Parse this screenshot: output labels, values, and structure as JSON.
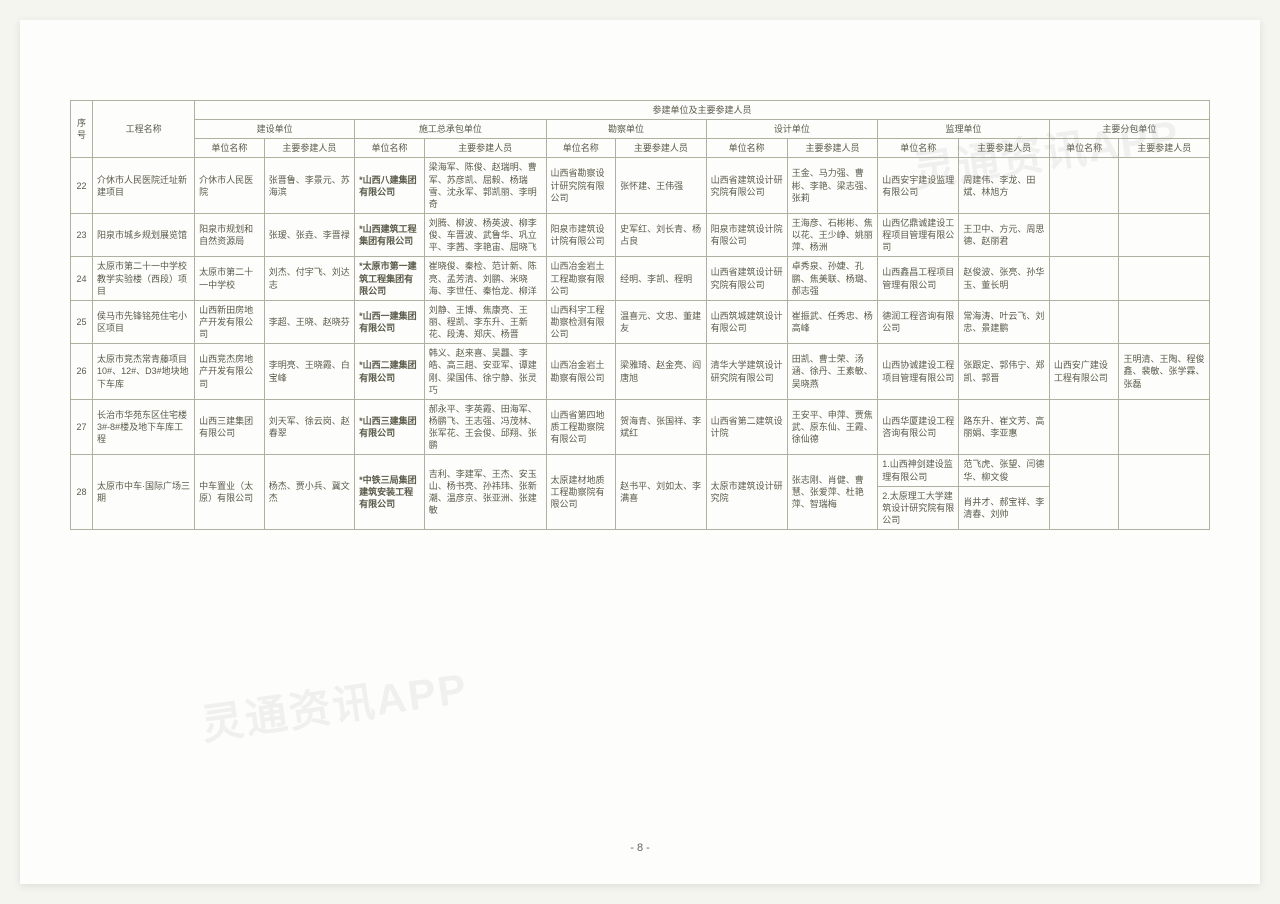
{
  "page_number": "- 8 -",
  "watermark_text": "灵通资讯APP",
  "table": {
    "header_main": "参建单位及主要参建人员",
    "header_seq": "序号",
    "header_proj": "工程名称",
    "header_build": "建设单位",
    "header_gc": "施工总承包单位",
    "header_survey": "勘察单位",
    "header_design": "设计单位",
    "header_super": "监理单位",
    "header_sub": "主要分包单位",
    "header_unit": "单位名称",
    "header_ppl": "主要参建人员",
    "rows": [
      {
        "seq": "22",
        "proj": "介休市人民医院迁址新建项目",
        "build_name": "介休市人民医院",
        "build_ppl": "张晋鲁、李景元、苏海滨",
        "gc_name": "*山西八建集团有限公司",
        "gc_ppl": "梁海军、陈俊、赵瑞明、曹军、苏彦凯、屈毅、杨瑞雪、沈永军、郭凯丽、李明奇",
        "survey_name": "山西省勘察设计研究院有限公司",
        "survey_ppl": "张怀建、王伟强",
        "design_name": "山西省建筑设计研究院有限公司",
        "design_ppl": "王金、马力强、曹彬、李艳、梁志强、张莉",
        "super_name": "山西安宇建设监理有限公司",
        "super_ppl": "周建伟、李龙、田斌、林旭方",
        "sub_name": "",
        "sub_ppl": ""
      },
      {
        "seq": "23",
        "proj": "阳泉市城乡规划展览馆",
        "build_name": "阳泉市规划和自然资源局",
        "build_ppl": "张瑷、张垚、李晋禄",
        "gc_name": "*山西建筑工程集团有限公司",
        "gc_ppl": "刘腾、柳波、杨英波、柳李俊、车晋波、武鲁华、巩立平、李茜、李艳宙、屈晓飞",
        "survey_name": "阳泉市建筑设计院有限公司",
        "survey_ppl": "史军红、刘长青、杨占良",
        "design_name": "阳泉市建筑设计院有限公司",
        "design_ppl": "王海彦、石彬彬、焦以花、王少峥、姚丽萍、杨洲",
        "super_name": "山西亿鼎诚建设工程项目管理有限公司",
        "super_ppl": "王卫中、方元、周思德、赵丽君",
        "sub_name": "",
        "sub_ppl": ""
      },
      {
        "seq": "24",
        "proj": "太原市第二十一中学校教学实验楼（西段）项目",
        "build_name": "太原市第二十一中学校",
        "build_ppl": "刘杰、付宇飞、刘达志",
        "gc_name": "*太原市第一建筑工程集团有限公司",
        "gc_ppl": "崔晓俊、秦检、范计新、陈亮、孟芳清、刘鹏、米晓海、李世任、秦怡龙、柳洋",
        "survey_name": "山西冶金岩土工程勘察有限公司",
        "survey_ppl": "经明、李凯、程明",
        "design_name": "山西省建筑设计研究院有限公司",
        "design_ppl": "卓秀泉、孙婕、孔鹏、焦美联、杨璐、郝志强",
        "super_name": "山西鑫昌工程项目管理有限公司",
        "super_ppl": "赵俊波、张亮、孙华玉、董长明",
        "sub_name": "",
        "sub_ppl": ""
      },
      {
        "seq": "25",
        "proj": "侯马市先锋铭苑住宅小区项目",
        "build_name": "山西新田房地产开发有限公司",
        "build_ppl": "李超、王晓、赵晓芬",
        "gc_name": "*山西一建集团有限公司",
        "gc_ppl": "刘静、王博、焦康亮、王丽、程凯、李东升、王新花、段涛、郑庆、杨晋",
        "survey_name": "山西科宇工程勘察检测有限公司",
        "survey_ppl": "温喜元、文忠、董建友",
        "design_name": "山西筑城建筑设计有限公司",
        "design_ppl": "崔振武、任秀忠、杨高峰",
        "super_name": "德润工程咨询有限公司",
        "super_ppl": "常海涛、叶云飞、刘忠、景建鹏",
        "sub_name": "",
        "sub_ppl": ""
      },
      {
        "seq": "26",
        "proj": "太原市竞杰常青藤项目 10#、12#、D3#地块地下车库",
        "build_name": "山西竞杰房地产开发有限公司",
        "build_ppl": "李明亮、王晓霞、白宝峰",
        "gc_name": "*山西二建集团有限公司",
        "gc_ppl": "韩义、赵来喜、吴龘、李皓、高三趟、安亚军、谭建刚、梁国伟、徐宁静、张灵巧",
        "survey_name": "山西冶金岩土勘察有限公司",
        "survey_ppl": "梁雅琦、赵金亮、阎唐旭",
        "design_name": "清华大学建筑设计研究院有限公司",
        "design_ppl": "田凯、曹士荣、汤涵、徐丹、王素敏、吴晓燕",
        "super_name": "山西协诚建设工程项目管理有限公司",
        "super_ppl": "张跟定、郭伟宁、郑凯、郭晋",
        "sub_name": "山西安广建设工程有限公司",
        "sub_ppl": "王明清、王陶、程俊鑫、裴敏、张学霖、张磊"
      },
      {
        "seq": "27",
        "proj": "长治市华苑东区住宅楼 3#-8#楼及地下车库工程",
        "build_name": "山西三建集团有限公司",
        "build_ppl": "刘天军、徐云岗、赵春翠",
        "gc_name": "*山西三建集团有限公司",
        "gc_ppl": "郝永平、李英霞、田海军、杨鹏飞、王志强、冯茂林、张军花、王会俊、邱翔、张鹏",
        "survey_name": "山西省第四地质工程勘察院有限公司",
        "survey_ppl": "贺海青、张国祥、李斌红",
        "design_name": "山西省第二建筑设计院",
        "design_ppl": "王安平、申萍、贾焦武、原东仙、王霞、徐仙德",
        "super_name": "山西华厦建设工程咨询有限公司",
        "super_ppl": "路东升、崔文芳、高丽娟、李亚惠",
        "sub_name": "",
        "sub_ppl": ""
      }
    ],
    "row28": {
      "seq": "28",
      "proj": "太原市中车·国际广场三期",
      "build_name": "中车置业（太原）有限公司",
      "build_ppl": "杨杰、贾小兵、冀文杰",
      "gc_name": "*中铁三局集团建筑安装工程有限公司",
      "gc_ppl": "吉利、李建军、王杰、安玉山、杨书亮、孙祎玮、张新潮、温彦京、张亚洲、张建敏",
      "survey_name": "太原建材地质工程勘察院有限公司",
      "survey_ppl": "赵书平、刘如太、李满喜",
      "design_name": "太原市建筑设计研究院",
      "design_ppl": "张志刚、肖健、曹慧、张爱萍、杜艳萍、智瑞梅",
      "super_name1": "1.山西神剑建设监理有限公司",
      "super_ppl1": "范飞虎、张望、闫德华、柳文俊",
      "super_name2": "2.太原理工大学建筑设计研究院有限公司",
      "super_ppl2": "肖井才、郝宝祥、李清春、刘帅",
      "sub_name": "",
      "sub_ppl": ""
    }
  }
}
